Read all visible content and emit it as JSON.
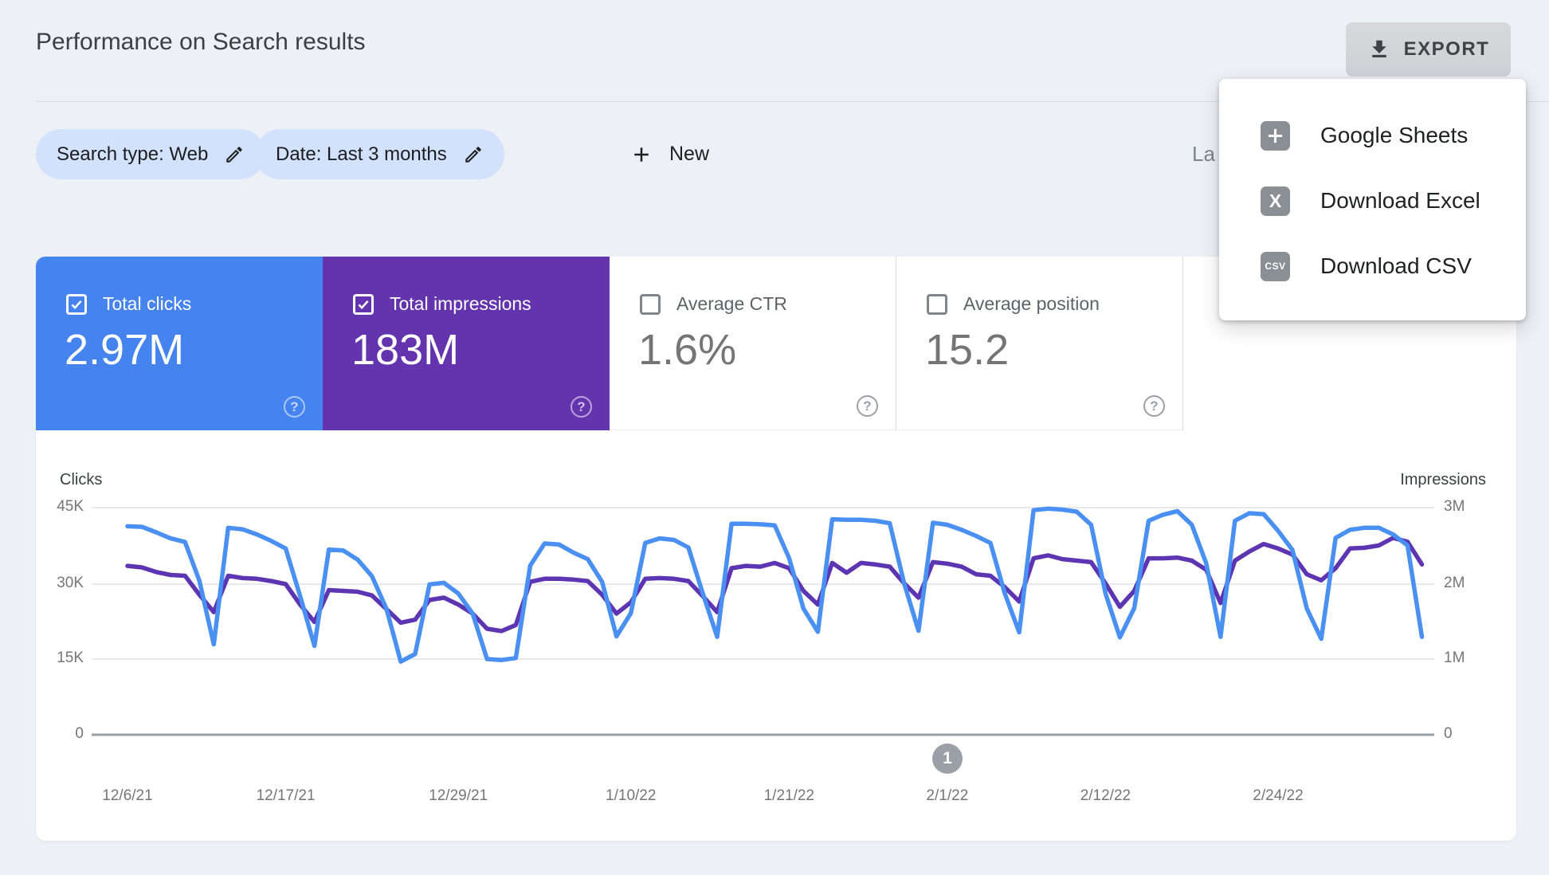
{
  "header": {
    "title": "Performance on Search results",
    "export_label": "EXPORT"
  },
  "filters": {
    "search_type_chip": "Search type: Web",
    "date_chip": "Date: Last 3 months",
    "new_label": "New",
    "last_updated_partial": "La"
  },
  "export_menu": {
    "items": [
      {
        "label": "Google Sheets",
        "icon": "google-sheets-icon"
      },
      {
        "label": "Download Excel",
        "icon": "excel-icon",
        "icon_text": "X"
      },
      {
        "label": "Download CSV",
        "icon": "csv-icon",
        "icon_text": "CSV"
      }
    ]
  },
  "icons": {
    "help_glyph": "?"
  },
  "metrics": {
    "cards": [
      {
        "label": "Total clicks",
        "value": "2.97M",
        "checked": true,
        "color": "#4584ee"
      },
      {
        "label": "Total impressions",
        "value": "183M",
        "checked": true,
        "color": "#6434ae"
      },
      {
        "label": "Average CTR",
        "value": "1.6%",
        "checked": false
      },
      {
        "label": "Average position",
        "value": "15.2",
        "checked": false
      }
    ]
  },
  "pagination": {
    "current_page": "1"
  },
  "chart_data": {
    "type": "line",
    "title": "",
    "left_axis": {
      "title": "Clicks",
      "ticks": [
        "45K",
        "30K",
        "15K",
        "0"
      ],
      "max": 45000
    },
    "right_axis": {
      "title": "Impressions",
      "ticks": [
        "3M",
        "2M",
        "1M",
        "0"
      ],
      "max": 3000000
    },
    "grid": true,
    "x_tick_labels": [
      "12/6/21",
      "12/17/21",
      "12/29/21",
      "1/10/22",
      "1/21/22",
      "2/1/22",
      "2/12/22",
      "2/24/22"
    ],
    "dates": [
      "12/6/21",
      "12/7/21",
      "12/8/21",
      "12/9/21",
      "12/10/21",
      "12/11/21",
      "12/12/21",
      "12/13/21",
      "12/14/21",
      "12/15/21",
      "12/16/21",
      "12/17/21",
      "12/18/21",
      "12/19/21",
      "12/20/21",
      "12/21/21",
      "12/22/21",
      "12/23/21",
      "12/24/21",
      "12/25/21",
      "12/26/21",
      "12/27/21",
      "12/28/21",
      "12/29/21",
      "12/30/21",
      "12/31/21",
      "1/1/22",
      "1/2/22",
      "1/3/22",
      "1/4/22",
      "1/5/22",
      "1/6/22",
      "1/7/22",
      "1/8/22",
      "1/9/22",
      "1/10/22",
      "1/11/22",
      "1/12/22",
      "1/13/22",
      "1/14/22",
      "1/15/22",
      "1/16/22",
      "1/17/22",
      "1/18/22",
      "1/19/22",
      "1/20/22",
      "1/21/22",
      "1/22/22",
      "1/23/22",
      "1/24/22",
      "1/25/22",
      "1/26/22",
      "1/27/22",
      "1/28/22",
      "1/29/22",
      "1/30/22",
      "1/31/22",
      "2/1/22",
      "2/2/22",
      "2/3/22",
      "2/4/22",
      "2/5/22",
      "2/6/22",
      "2/7/22",
      "2/8/22",
      "2/9/22",
      "2/10/22",
      "2/11/22",
      "2/12/22",
      "2/13/22",
      "2/14/22",
      "2/15/22",
      "2/16/22",
      "2/17/22",
      "2/18/22",
      "2/19/22",
      "2/20/22",
      "2/21/22",
      "2/22/22",
      "2/23/22",
      "2/24/22",
      "2/25/22",
      "2/26/22",
      "2/27/22",
      "2/28/22",
      "3/1/22",
      "3/2/22",
      "3/3/22",
      "3/4/22",
      "3/5/22",
      "3/6/22"
    ],
    "series": [
      {
        "name": "Clicks",
        "axis": "left",
        "color": "#4a90f2",
        "unit": "thousands",
        "values": [
          41.3,
          41.2,
          40.1,
          38.9,
          38.2,
          30.5,
          17.9,
          41.0,
          40.7,
          39.7,
          38.4,
          36.9,
          27.5,
          17.6,
          36.7,
          36.5,
          34.7,
          31.4,
          25.0,
          14.5,
          16.0,
          29.8,
          30.1,
          28.0,
          24.0,
          15.0,
          14.8,
          15.2,
          33.5,
          37.9,
          37.7,
          36.1,
          34.8,
          30.3,
          19.5,
          24.1,
          38.0,
          38.9,
          38.6,
          37.1,
          28.0,
          19.4,
          41.8,
          41.8,
          41.7,
          41.5,
          35.0,
          25.0,
          20.4,
          42.7,
          42.6,
          42.6,
          42.4,
          41.9,
          30.0,
          20.6,
          42.0,
          41.6,
          40.6,
          39.4,
          38.0,
          28.0,
          20.3,
          44.5,
          44.8,
          44.6,
          44.2,
          41.6,
          28.0,
          19.3,
          25.1,
          42.4,
          43.6,
          44.3,
          41.6,
          34.0,
          19.4,
          42.4,
          43.9,
          43.7,
          40.4,
          36.6,
          25.0,
          19.0,
          39.0,
          40.6,
          41.0,
          41.0,
          39.7,
          37.5,
          19.4
        ]
      },
      {
        "name": "Impressions",
        "axis": "right",
        "color": "#5d34b2",
        "unit": "millions",
        "values": [
          2.23,
          2.21,
          2.15,
          2.11,
          2.1,
          1.85,
          1.62,
          2.1,
          2.07,
          2.06,
          2.03,
          1.99,
          1.72,
          1.49,
          1.91,
          1.9,
          1.89,
          1.84,
          1.66,
          1.48,
          1.52,
          1.78,
          1.81,
          1.72,
          1.6,
          1.4,
          1.37,
          1.45,
          2.02,
          2.06,
          2.06,
          2.05,
          2.03,
          1.85,
          1.6,
          1.75,
          2.06,
          2.07,
          2.06,
          2.03,
          1.83,
          1.62,
          2.2,
          2.23,
          2.22,
          2.27,
          2.2,
          1.9,
          1.72,
          2.27,
          2.14,
          2.27,
          2.25,
          2.22,
          2.0,
          1.81,
          2.28,
          2.26,
          2.22,
          2.12,
          2.1,
          1.95,
          1.76,
          2.33,
          2.37,
          2.32,
          2.3,
          2.28,
          2.0,
          1.69,
          1.9,
          2.33,
          2.33,
          2.34,
          2.3,
          2.18,
          1.74,
          2.3,
          2.42,
          2.52,
          2.46,
          2.38,
          2.12,
          2.04,
          2.2,
          2.46,
          2.47,
          2.5,
          2.6,
          2.55,
          2.25
        ]
      }
    ]
  }
}
